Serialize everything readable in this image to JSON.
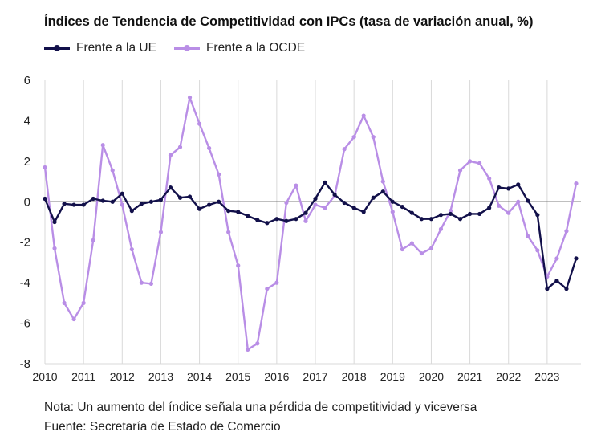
{
  "title": "Índices de Tendencia de Competitividad con IPCs (tasa de variación anual, %)",
  "notes": {
    "line1": "Nota: Un aumento del índice señala una pérdida de competitividad y viceversa",
    "line2": "Fuente: Secretaría de Estado de Comercio"
  },
  "colors": {
    "ue": "#12104a",
    "ocde": "#b98ee6",
    "zero_line": "#555555",
    "grid": "#d9d9d9"
  },
  "chart_data": {
    "type": "line",
    "title": "Índices de Tendencia de Competitividad con IPCs (tasa de variación anual, %)",
    "xlabel": "",
    "ylabel": "",
    "ylim": [
      -8,
      6
    ],
    "yticks": [
      -8,
      -6,
      -4,
      -2,
      0,
      2,
      4,
      6
    ],
    "xticks": [
      "2010",
      "2011",
      "2012",
      "2013",
      "2014",
      "2015",
      "2016",
      "2017",
      "2018",
      "2019",
      "2020",
      "2021",
      "2022",
      "2023"
    ],
    "xlim": [
      2010,
      2023.875
    ],
    "grid": "vertical",
    "legend": "top-left",
    "x": [
      2010.0,
      2010.25,
      2010.5,
      2010.75,
      2011.0,
      2011.25,
      2011.5,
      2011.75,
      2012.0,
      2012.25,
      2012.5,
      2012.75,
      2013.0,
      2013.25,
      2013.5,
      2013.75,
      2014.0,
      2014.25,
      2014.5,
      2014.75,
      2015.0,
      2015.25,
      2015.5,
      2015.75,
      2016.0,
      2016.25,
      2016.5,
      2016.75,
      2017.0,
      2017.25,
      2017.5,
      2017.75,
      2018.0,
      2018.25,
      2018.5,
      2018.75,
      2019.0,
      2019.25,
      2019.5,
      2019.75,
      2020.0,
      2020.25,
      2020.5,
      2020.75,
      2021.0,
      2021.25,
      2021.5,
      2021.75,
      2022.0,
      2022.25,
      2022.5,
      2022.75,
      2023.0,
      2023.25,
      2023.5,
      2023.75
    ],
    "series": [
      {
        "name": "Frente a la UE",
        "values": [
          0.15,
          -1.0,
          -0.1,
          -0.15,
          -0.15,
          0.15,
          0.05,
          0.0,
          0.4,
          -0.45,
          -0.1,
          0.0,
          0.1,
          0.7,
          0.2,
          0.25,
          -0.35,
          -0.15,
          0.0,
          -0.45,
          -0.5,
          -0.7,
          -0.9,
          -1.05,
          -0.85,
          -0.95,
          -0.85,
          -0.55,
          0.15,
          0.95,
          0.35,
          -0.05,
          -0.3,
          -0.5,
          0.2,
          0.5,
          0.0,
          -0.25,
          -0.55,
          -0.85,
          -0.85,
          -0.65,
          -0.6,
          -0.85,
          -0.6,
          -0.6,
          -0.3,
          0.7,
          0.65,
          0.85,
          0.05,
          -0.65,
          -4.3,
          -3.9,
          -4.3,
          -2.8
        ]
      },
      {
        "name": "Frente a la OCDE",
        "values": [
          1.7,
          -2.3,
          -5.0,
          -5.8,
          -5.0,
          -1.9,
          2.8,
          1.55,
          -0.15,
          -2.35,
          -4.0,
          -4.05,
          -1.5,
          2.3,
          2.7,
          5.15,
          3.85,
          2.65,
          1.35,
          -1.5,
          -3.15,
          -7.3,
          -7.0,
          -4.3,
          -4.0,
          -0.05,
          0.8,
          -0.95,
          -0.15,
          -0.3,
          0.3,
          2.6,
          3.2,
          4.25,
          3.2,
          1.0,
          -0.5,
          -2.35,
          -2.05,
          -2.55,
          -2.3,
          -1.35,
          -0.45,
          1.55,
          2.0,
          1.9,
          1.15,
          -0.2,
          -0.55,
          0.0,
          -1.7,
          -2.4,
          -3.7,
          -2.8,
          -1.45,
          0.9
        ]
      }
    ]
  }
}
